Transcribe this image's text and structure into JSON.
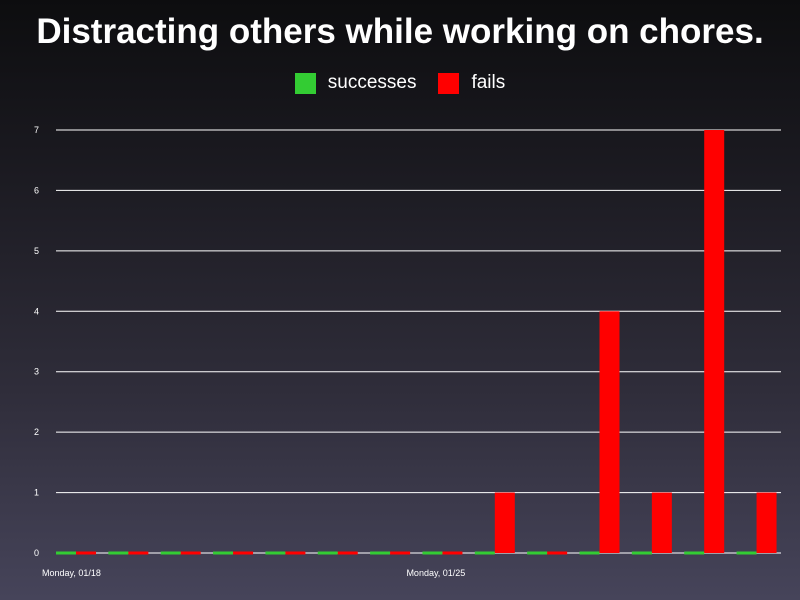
{
  "chart_data": {
    "type": "bar",
    "title": "Distracting others while working on chores.",
    "xlabel": "",
    "ylabel": "",
    "ylim": [
      0,
      7
    ],
    "yticks": [
      0,
      1,
      2,
      3,
      4,
      5,
      6,
      7
    ],
    "grid": true,
    "legend_position": "top-center",
    "x_tick_labels": [
      {
        "index": 0,
        "label": "Monday, 01/18"
      },
      {
        "index": 7,
        "label": "Monday, 01/25"
      }
    ],
    "series": [
      {
        "name": "successes",
        "color": "#33cc33",
        "values": [
          0,
          0,
          0,
          0,
          0,
          0,
          0,
          0,
          0,
          0,
          0,
          0,
          0,
          0
        ]
      },
      {
        "name": "fails",
        "color": "#ff0000",
        "values": [
          0,
          0,
          0,
          0,
          0,
          0,
          0,
          0,
          1,
          0,
          4,
          1,
          7,
          1
        ]
      }
    ]
  }
}
